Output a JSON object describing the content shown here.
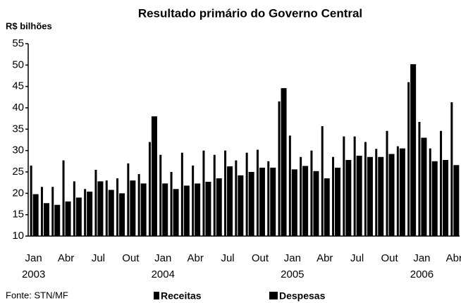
{
  "chart_data": {
    "type": "bar",
    "title": "Resultado primário do Governo Central",
    "y_label": "R$ bilhões",
    "source": "Fonte: STN/MF",
    "categories": [
      "Jan",
      null,
      null,
      "Abr",
      null,
      null,
      "Jul",
      null,
      null,
      "Out",
      null,
      null,
      "Jan",
      null,
      null,
      "Abr",
      null,
      null,
      "Jul",
      null,
      null,
      "Out",
      null,
      null,
      "Jan",
      null,
      null,
      "Abr",
      null,
      null,
      "Jul",
      null,
      null,
      "Out",
      null,
      null,
      "Jan",
      null,
      null,
      "Abr"
    ],
    "year_labels": [
      "2003",
      null,
      null,
      null,
      null,
      null,
      null,
      null,
      null,
      null,
      null,
      null,
      "2004",
      null,
      null,
      null,
      null,
      null,
      null,
      null,
      null,
      null,
      null,
      null,
      "2005",
      null,
      null,
      null,
      null,
      null,
      null,
      null,
      null,
      null,
      null,
      null,
      "2006",
      null,
      null,
      null
    ],
    "series": [
      {
        "name": "Receitas",
        "color": "#000000",
        "values": [
          26.5,
          21.5,
          21.5,
          27.7,
          22.8,
          21,
          25.5,
          23,
          23.5,
          27,
          24.5,
          32,
          29,
          25,
          29.5,
          26.5,
          30,
          29,
          30,
          27.7,
          29.5,
          30.2,
          27.5,
          41.5,
          33.5,
          28.5,
          30,
          35.7,
          28.5,
          33.3,
          33.3,
          32,
          30.4,
          34.6,
          31,
          46,
          36.7,
          30.5,
          34.6,
          41.3
        ]
      },
      {
        "name": "Despesas",
        "color": "#000000",
        "values": [
          19.8,
          17.7,
          17.3,
          18.1,
          19,
          20.4,
          22.8,
          20.8,
          20,
          23,
          22.3,
          38,
          22.3,
          21,
          21.8,
          22.3,
          22.7,
          23.5,
          26.3,
          24.2,
          25,
          26,
          26,
          44.6,
          25.6,
          26.4,
          25.2,
          23.5,
          26,
          27.8,
          28.8,
          28.5,
          28.5,
          29.2,
          30.5,
          50.2,
          33,
          27.5,
          27.8,
          26.6
        ]
      }
    ],
    "ylim": [
      10,
      55
    ],
    "yticks": [
      10,
      15,
      20,
      25,
      30,
      35,
      40,
      45,
      50,
      55
    ],
    "grid": false
  }
}
